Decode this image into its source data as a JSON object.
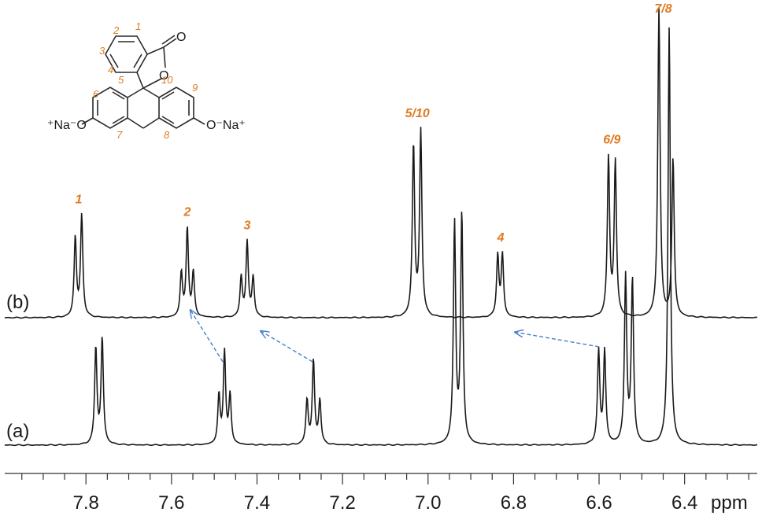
{
  "colors": {
    "trace": "#1a1a1a",
    "peak_label": "#e07b20",
    "arrow": "#4a7fc8",
    "axis": "#333333"
  },
  "chart_data": {
    "type": "line",
    "title": "",
    "xlabel": "ppm",
    "ylabel": "",
    "xlim": [
      7.99,
      6.23
    ],
    "x_reversed": true,
    "x_ticks": [
      7.8,
      7.6,
      7.4,
      7.2,
      7.0,
      6.8,
      6.6,
      6.4
    ],
    "x_tick_labels": [
      "7.8",
      "7.6",
      "7.4",
      "7.2",
      "7.0",
      "6.8",
      "6.6",
      "6.4"
    ],
    "grid": false,
    "legend": "none",
    "series": [
      {
        "name": "(a)",
        "peaks": [
          {
            "ppm": 7.777,
            "height": 0.22
          },
          {
            "ppm": 7.762,
            "height": 0.24
          },
          {
            "ppm": 7.489,
            "height": 0.11
          },
          {
            "ppm": 7.476,
            "height": 0.21
          },
          {
            "ppm": 7.463,
            "height": 0.11
          },
          {
            "ppm": 7.283,
            "height": 0.1
          },
          {
            "ppm": 7.268,
            "height": 0.19
          },
          {
            "ppm": 7.253,
            "height": 0.1
          },
          {
            "ppm": 6.938,
            "height": 0.5
          },
          {
            "ppm": 6.921,
            "height": 0.52
          },
          {
            "ppm": 6.601,
            "height": 0.21
          },
          {
            "ppm": 6.587,
            "height": 0.21
          },
          {
            "ppm": 6.538,
            "height": 0.38
          },
          {
            "ppm": 6.522,
            "height": 0.37
          },
          {
            "ppm": 6.436,
            "height": 0.95
          }
        ]
      },
      {
        "name": "(b)",
        "peaks": [
          {
            "ppm": 7.825,
            "height": 0.18
          },
          {
            "ppm": 7.81,
            "height": 0.23
          },
          {
            "ppm": 7.577,
            "height": 0.1
          },
          {
            "ppm": 7.563,
            "height": 0.2
          },
          {
            "ppm": 7.549,
            "height": 0.1
          },
          {
            "ppm": 7.437,
            "height": 0.09
          },
          {
            "ppm": 7.423,
            "height": 0.17
          },
          {
            "ppm": 7.409,
            "height": 0.09
          },
          {
            "ppm": 7.034,
            "height": 0.39
          },
          {
            "ppm": 7.017,
            "height": 0.42
          },
          {
            "ppm": 6.837,
            "height": 0.14
          },
          {
            "ppm": 6.826,
            "height": 0.14
          },
          {
            "ppm": 6.578,
            "height": 0.36
          },
          {
            "ppm": 6.562,
            "height": 0.35
          },
          {
            "ppm": 6.46,
            "height": 0.7
          },
          {
            "ppm": 6.427,
            "height": 0.36
          }
        ]
      }
    ],
    "peak_labels": [
      {
        "text": "1",
        "ppm": 7.817,
        "series": "(b)"
      },
      {
        "text": "2",
        "ppm": 7.563,
        "series": "(b)"
      },
      {
        "text": "3",
        "ppm": 7.423,
        "series": "(b)"
      },
      {
        "text": "5/10",
        "ppm": 7.025,
        "series": "(b)"
      },
      {
        "text": "4",
        "ppm": 6.83,
        "series": "(b)"
      },
      {
        "text": "6/9",
        "ppm": 6.57,
        "series": "(b)"
      },
      {
        "text": "7/8",
        "ppm": 6.45,
        "series": "(b)"
      }
    ],
    "shift_arrows": [
      {
        "from_ppm": 7.48,
        "to_ppm": 7.555
      },
      {
        "from_ppm": 7.27,
        "to_ppm": 7.39
      },
      {
        "from_ppm": 6.6,
        "to_ppm": 6.795
      }
    ]
  },
  "structure": {
    "atoms": [
      "1",
      "2",
      "3",
      "4",
      "5",
      "6",
      "7",
      "8",
      "9",
      "10"
    ],
    "carbonyl_o": "O",
    "ring_o": "O",
    "left_group": "⁺Na⁻O",
    "right_group": "O⁻Na⁺"
  }
}
